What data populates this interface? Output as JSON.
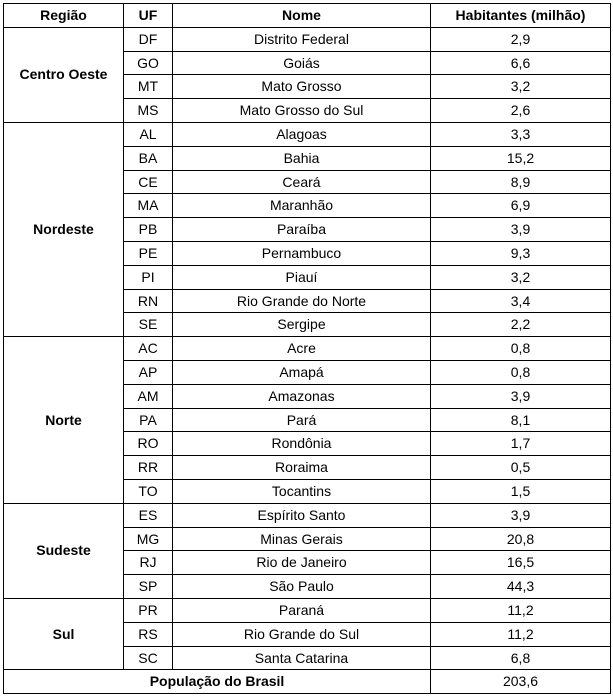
{
  "headers": {
    "region": "Região",
    "uf": "UF",
    "name": "Nome",
    "population": "Habitantes (milhão)"
  },
  "regions": [
    {
      "name": "Centro Oeste",
      "states": [
        {
          "uf": "DF",
          "name": "Distrito Federal",
          "population": "2,9"
        },
        {
          "uf": "GO",
          "name": "Goiás",
          "population": "6,6"
        },
        {
          "uf": "MT",
          "name": "Mato Grosso",
          "population": "3,2"
        },
        {
          "uf": "MS",
          "name": "Mato Grosso do Sul",
          "population": "2,6"
        }
      ]
    },
    {
      "name": "Nordeste",
      "states": [
        {
          "uf": "AL",
          "name": "Alagoas",
          "population": "3,3"
        },
        {
          "uf": "BA",
          "name": "Bahia",
          "population": "15,2"
        },
        {
          "uf": "CE",
          "name": "Ceará",
          "population": "8,9"
        },
        {
          "uf": "MA",
          "name": "Maranhão",
          "population": "6,9"
        },
        {
          "uf": "PB",
          "name": "Paraíba",
          "population": "3,9"
        },
        {
          "uf": "PE",
          "name": "Pernambuco",
          "population": "9,3"
        },
        {
          "uf": "PI",
          "name": "Piauí",
          "population": "3,2"
        },
        {
          "uf": "RN",
          "name": "Rio Grande do Norte",
          "population": "3,4"
        },
        {
          "uf": "SE",
          "name": "Sergipe",
          "population": "2,2"
        }
      ]
    },
    {
      "name": "Norte",
      "states": [
        {
          "uf": "AC",
          "name": "Acre",
          "population": "0,8"
        },
        {
          "uf": "AP",
          "name": "Amapá",
          "population": "0,8"
        },
        {
          "uf": "AM",
          "name": "Amazonas",
          "population": "3,9"
        },
        {
          "uf": "PA",
          "name": "Pará",
          "population": "8,1"
        },
        {
          "uf": "RO",
          "name": "Rondônia",
          "population": "1,7"
        },
        {
          "uf": "RR",
          "name": "Roraima",
          "population": "0,5"
        },
        {
          "uf": "TO",
          "name": "Tocantins",
          "population": "1,5"
        }
      ]
    },
    {
      "name": "Sudeste",
      "states": [
        {
          "uf": "ES",
          "name": "Espírito Santo",
          "population": "3,9"
        },
        {
          "uf": "MG",
          "name": "Minas Gerais",
          "population": "20,8"
        },
        {
          "uf": "RJ",
          "name": "Rio de Janeiro",
          "population": "16,5"
        },
        {
          "uf": "SP",
          "name": "São Paulo",
          "population": "44,3"
        }
      ]
    },
    {
      "name": "Sul",
      "states": [
        {
          "uf": "PR",
          "name": "Paraná",
          "population": "11,2"
        },
        {
          "uf": "RS",
          "name": "Rio Grande do Sul",
          "population": "11,2"
        },
        {
          "uf": "SC",
          "name": "Santa Catarina",
          "population": "6,8"
        }
      ]
    }
  ],
  "total": {
    "label": "População do Brasil",
    "value": "203,6"
  }
}
